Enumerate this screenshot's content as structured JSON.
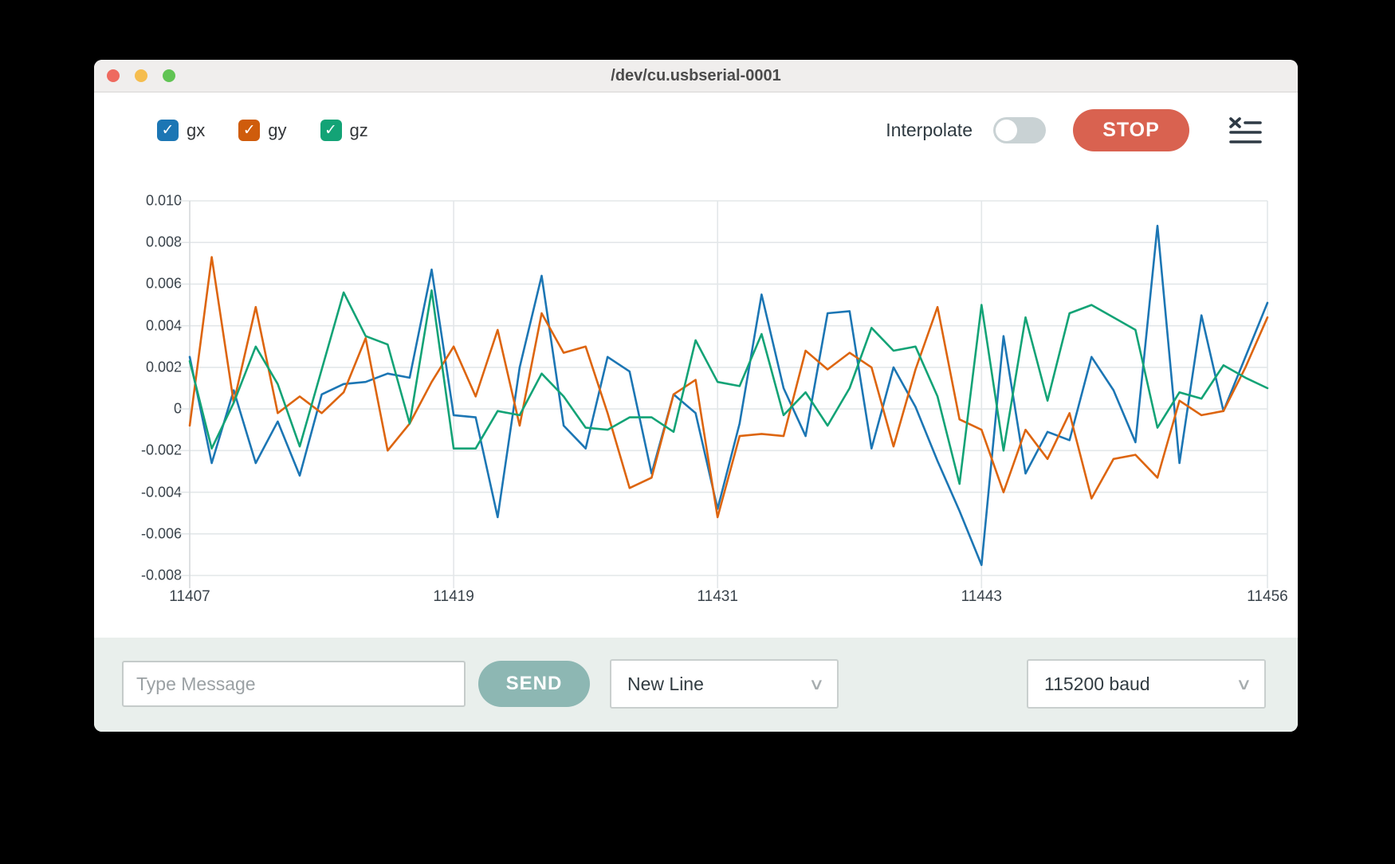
{
  "window": {
    "title": "/dev/cu.usbserial-0001"
  },
  "titlebar_icons": [
    "close-button",
    "minimize-button",
    "zoom-button"
  ],
  "header": {
    "series_toggles": [
      {
        "label": "gx",
        "color": "#1c76b4",
        "checked": true,
        "checkmark": "✓"
      },
      {
        "label": "gy",
        "color": "#cf5c0c",
        "checked": true,
        "checkmark": "✓"
      },
      {
        "label": "gz",
        "color": "#13a376",
        "checked": true,
        "checkmark": "✓"
      }
    ],
    "interpolate_label": "Interpolate",
    "interpolate_on": false,
    "stop_label": "STOP"
  },
  "chart_data": {
    "type": "line",
    "title": "",
    "xlabel": "",
    "ylabel": "",
    "xlim": [
      11407,
      11456
    ],
    "ylim": [
      -0.008,
      0.01
    ],
    "grid": true,
    "x_tick_labels": [
      "11407",
      "11419",
      "11431",
      "11443",
      "11456"
    ],
    "x_tick_values": [
      11407,
      11419,
      11431,
      11443,
      11456
    ],
    "y_tick_labels": [
      "0.010",
      "0.008",
      "0.006",
      "0.004",
      "0.002",
      "0",
      "-0.002",
      "-0.004",
      "-0.006",
      "-0.008"
    ],
    "y_tick_values": [
      0.01,
      0.008,
      0.006,
      0.004,
      0.002,
      0,
      -0.002,
      -0.004,
      -0.006,
      -0.008
    ],
    "x_start": 11407,
    "x_step": 1,
    "legend_position": "top-left-checkboxes",
    "series": [
      {
        "name": "gx",
        "color": "#1c76b4",
        "values": [
          0.0025,
          -0.0026,
          0.0009,
          -0.0026,
          -0.0006,
          -0.0032,
          0.0007,
          0.0012,
          0.0013,
          0.0017,
          0.0015,
          0.0067,
          -0.0003,
          -0.0004,
          -0.0052,
          0.002,
          0.0064,
          -0.0008,
          -0.0019,
          0.0025,
          0.0018,
          -0.0031,
          0.0007,
          -0.0002,
          -0.0048,
          -0.0007,
          0.0055,
          0.001,
          -0.0013,
          0.0046,
          0.0047,
          -0.0019,
          0.002,
          0.0001,
          -0.0025,
          -0.0049,
          -0.0075,
          0.0035,
          -0.0031,
          -0.0011,
          -0.0015,
          0.0025,
          0.0009,
          -0.0016,
          0.0088,
          -0.0026,
          0.0045,
          -0.0001,
          0.0025,
          0.0051
        ]
      },
      {
        "name": "gy",
        "color": "#dd650f",
        "values": [
          -0.0008,
          0.0073,
          0.0003,
          0.0049,
          -0.0002,
          0.0006,
          -0.0002,
          0.0008,
          0.0034,
          -0.002,
          -0.0007,
          0.0013,
          0.003,
          0.0006,
          0.0038,
          -0.0008,
          0.0046,
          0.0027,
          0.003,
          -0.0002,
          -0.0038,
          -0.0033,
          0.0007,
          0.0014,
          -0.0052,
          -0.0013,
          -0.0012,
          -0.0013,
          0.0028,
          0.0019,
          0.0027,
          0.002,
          -0.0018,
          0.0019,
          0.0049,
          -0.0005,
          -0.001,
          -0.004,
          -0.001,
          -0.0024,
          -0.0002,
          -0.0043,
          -0.0024,
          -0.0022,
          -0.0033,
          0.0004,
          -0.0003,
          -0.0001,
          0.002,
          0.0044
        ]
      },
      {
        "name": "gz",
        "color": "#13a376",
        "values": [
          0.0023,
          -0.0019,
          0.0003,
          0.003,
          0.0012,
          -0.0018,
          0.0019,
          0.0056,
          0.0035,
          0.0031,
          -0.0007,
          0.0057,
          -0.0019,
          -0.0019,
          -0.0001,
          -0.0003,
          0.0017,
          0.0006,
          -0.0009,
          -0.001,
          -0.0004,
          -0.0004,
          -0.0011,
          0.0033,
          0.0013,
          0.0011,
          0.0036,
          -0.0003,
          0.0008,
          -0.0008,
          0.001,
          0.0039,
          0.0028,
          0.003,
          0.0006,
          -0.0036,
          0.005,
          -0.002,
          0.0044,
          0.0004,
          0.0046,
          0.005,
          0.0044,
          0.0038,
          -0.0009,
          0.0008,
          0.0005,
          0.0021,
          0.0015,
          0.001
        ]
      }
    ]
  },
  "footer": {
    "message_placeholder": "Type Message",
    "send_label": "SEND",
    "line_ending_value": "New Line",
    "baud_value": "115200 baud",
    "chevron": "∨"
  },
  "colors": {
    "accent_stop": "#d96250",
    "accent_send": "#8db7b3",
    "footer_bg": "#e9efec",
    "grid": "#e3e7e9",
    "axis": "#d5d9db"
  }
}
